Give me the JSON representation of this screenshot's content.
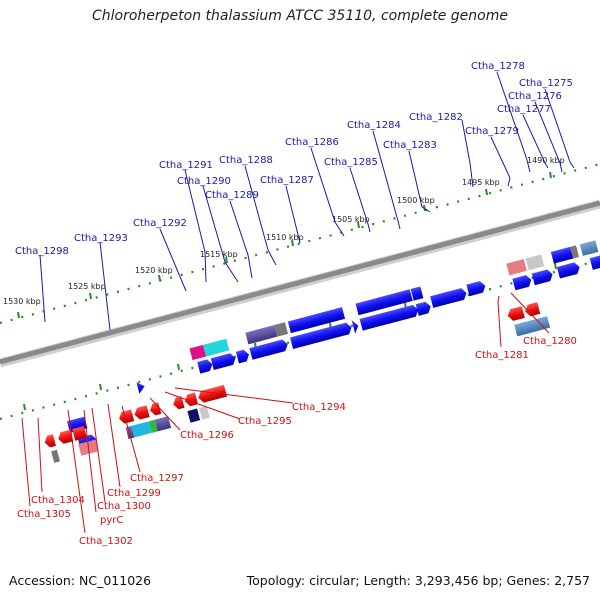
{
  "title": "Chloroherpeton thalassium ATCC 35110, complete genome",
  "footer": {
    "accession": "Accession: NC_011026",
    "summary": "Topology: circular; Length: 3,293,456 bp; Genes: 2,757"
  },
  "colors": {
    "upper_label": "#1a1aaa",
    "lower_label": "#cc1111",
    "backbone": "#8a8a8a",
    "forward_gene": "#1515ee",
    "reverse_gene": "#ee1111",
    "tick": "#2a8a2a"
  },
  "ticks": [
    {
      "text": "1530 kbp",
      "kbp": 1530
    },
    {
      "text": "1525 kbp",
      "kbp": 1525
    },
    {
      "text": "1520 kbp",
      "kbp": 1520
    },
    {
      "text": "1515 kbp",
      "kbp": 1515
    },
    {
      "text": "1510 kbp",
      "kbp": 1510
    },
    {
      "text": "1505 kbp",
      "kbp": 1505
    },
    {
      "text": "1500 kbp",
      "kbp": 1500
    },
    {
      "text": "1495 kbp",
      "kbp": 1495
    },
    {
      "text": "1490 kbp",
      "kbp": 1490
    }
  ],
  "upper_labels": [
    "Ctha_1298",
    "Ctha_1293",
    "Ctha_1292",
    "Ctha_1291",
    "Ctha_1290",
    "Ctha_1289",
    "Ctha_1288",
    "Ctha_1287",
    "Ctha_1286",
    "Ctha_1285",
    "Ctha_1284",
    "Ctha_1283",
    "Ctha_1282",
    "Ctha_1279",
    "Ctha_1278",
    "Ctha_1277",
    "Ctha_1276",
    "Ctha_1275"
  ],
  "right_lower_labels": [
    "Ctha_1281",
    "Ctha_1280"
  ],
  "lower_labels": [
    "Ctha_1294",
    "Ctha_1295",
    "Ctha_1296",
    "Ctha_1297",
    "Ctha_1299",
    "Ctha_1300",
    "pyrC",
    "Ctha_1302",
    "Ctha_1304",
    "Ctha_1305"
  ]
}
